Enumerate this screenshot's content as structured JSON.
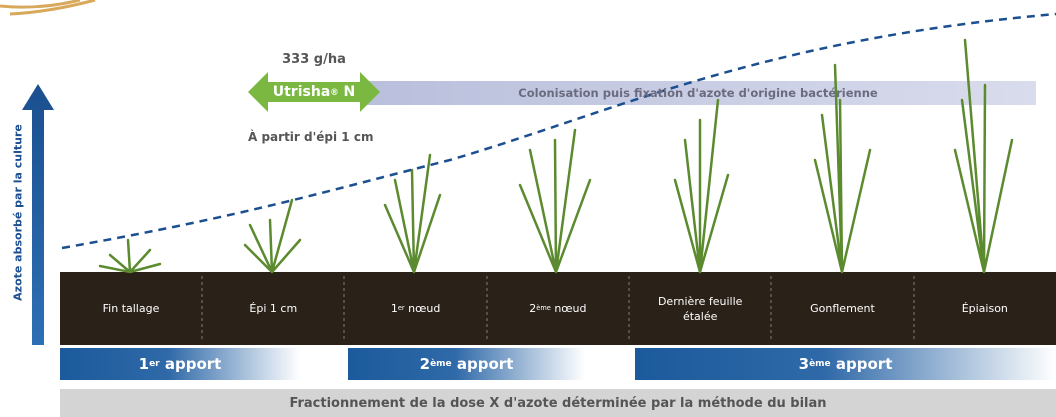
{
  "product": {
    "dose": "333 g/ha",
    "name": "Utrisha",
    "mark": "®",
    "suffix": "N",
    "start": "À partir d'épi 1 cm"
  },
  "colonisation": "Colonisation puis fixation d'azote d'origine bactérienne",
  "axis_label": "Azote absorbé par la culture",
  "stages": [
    {
      "label": "Fin tallage"
    },
    {
      "label": "Épi 1 cm"
    },
    {
      "main": "1",
      "sup": "er",
      "rest": "nœud"
    },
    {
      "main": "2",
      "sup": "ème",
      "rest": "nœud"
    },
    {
      "label": "Dernière feuille étalée"
    },
    {
      "label": "Gonflement"
    },
    {
      "label": "Épiaison"
    }
  ],
  "apports": [
    {
      "number": "1",
      "sup": "er",
      "word": "apport"
    },
    {
      "number": "2",
      "sup": "ème",
      "word": "apport"
    },
    {
      "number": "3",
      "sup": "ème",
      "word": "apport"
    }
  ],
  "footer": "Fractionnement de la dose X d'azote déterminée par la méthode du bilan"
}
